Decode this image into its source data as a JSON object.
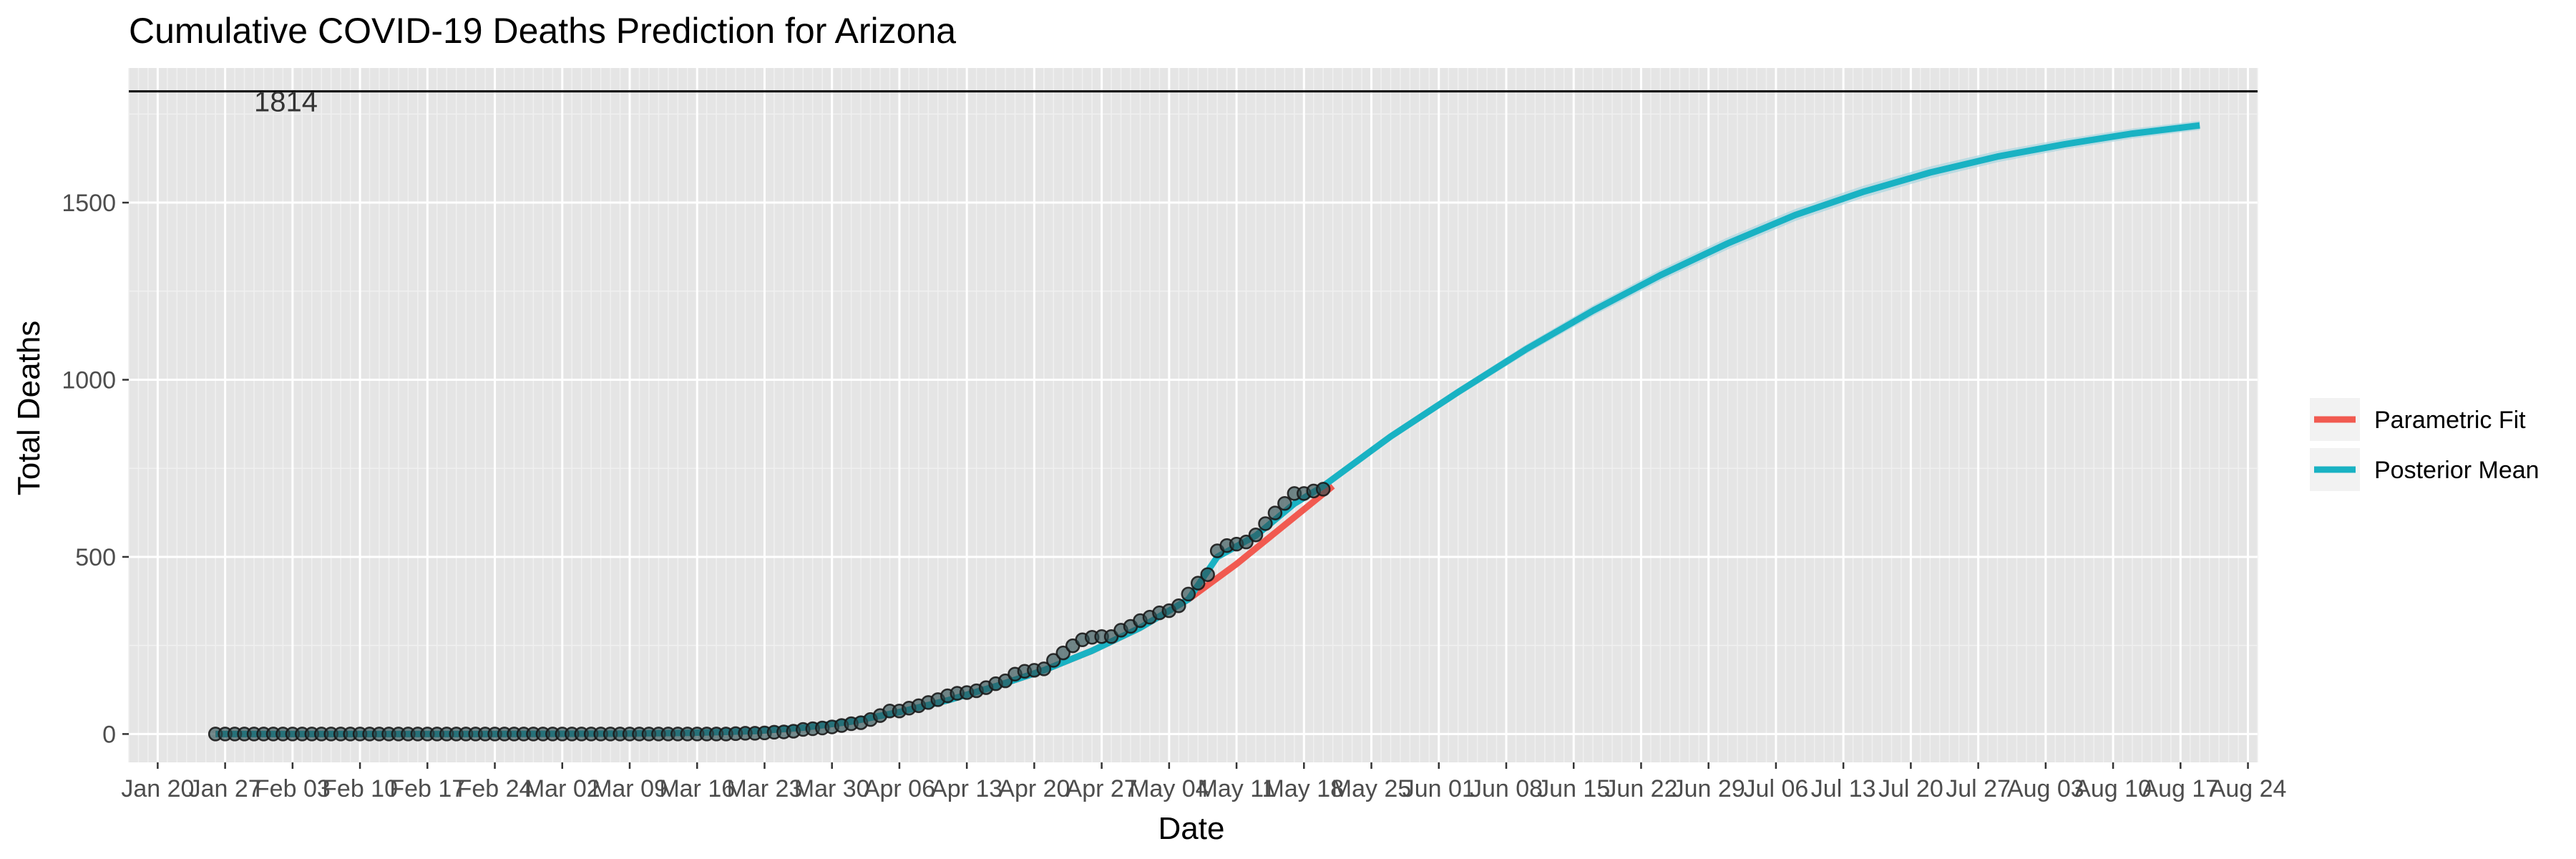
{
  "chart_data": {
    "type": "line",
    "title": "Cumulative COVID-19 Deaths Prediction for Arizona",
    "xlabel": "Date",
    "ylabel": "Total Deaths",
    "x_range": [
      "2020-01-17",
      "2020-08-25"
    ],
    "ylim": [
      -80,
      1880
    ],
    "y_ticks": [
      0,
      500,
      1000,
      1500
    ],
    "x_ticks": [
      {
        "date": "2020-01-20",
        "label": "Jan 20"
      },
      {
        "date": "2020-01-27",
        "label": "Jan 27"
      },
      {
        "date": "2020-02-03",
        "label": "Feb 03"
      },
      {
        "date": "2020-02-10",
        "label": "Feb 10"
      },
      {
        "date": "2020-02-17",
        "label": "Feb 17"
      },
      {
        "date": "2020-02-24",
        "label": "Feb 24"
      },
      {
        "date": "2020-03-02",
        "label": "Mar 02"
      },
      {
        "date": "2020-03-09",
        "label": "Mar 09"
      },
      {
        "date": "2020-03-16",
        "label": "Mar 16"
      },
      {
        "date": "2020-03-23",
        "label": "Mar 23"
      },
      {
        "date": "2020-03-30",
        "label": "Mar 30"
      },
      {
        "date": "2020-04-06",
        "label": "Apr 06"
      },
      {
        "date": "2020-04-13",
        "label": "Apr 13"
      },
      {
        "date": "2020-04-20",
        "label": "Apr 20"
      },
      {
        "date": "2020-04-27",
        "label": "Apr 27"
      },
      {
        "date": "2020-05-04",
        "label": "May 04"
      },
      {
        "date": "2020-05-11",
        "label": "May 11"
      },
      {
        "date": "2020-05-18",
        "label": "May 18"
      },
      {
        "date": "2020-05-25",
        "label": "May 25"
      },
      {
        "date": "2020-06-01",
        "label": "Jun 01"
      },
      {
        "date": "2020-06-08",
        "label": "Jun 08"
      },
      {
        "date": "2020-06-15",
        "label": "Jun 15"
      },
      {
        "date": "2020-06-22",
        "label": "Jun 22"
      },
      {
        "date": "2020-06-29",
        "label": "Jun 29"
      },
      {
        "date": "2020-07-06",
        "label": "Jul 06"
      },
      {
        "date": "2020-07-13",
        "label": "Jul 13"
      },
      {
        "date": "2020-07-20",
        "label": "Jul 20"
      },
      {
        "date": "2020-07-27",
        "label": "Jul 27"
      },
      {
        "date": "2020-08-03",
        "label": "Aug 03"
      },
      {
        "date": "2020-08-10",
        "label": "Aug 10"
      },
      {
        "date": "2020-08-17",
        "label": "Aug 17"
      },
      {
        "date": "2020-08-24",
        "label": "Aug 24"
      }
    ],
    "reference_line": {
      "value": 1814,
      "label": "1814",
      "color": "#000000"
    },
    "legend_position": "right",
    "grid": true,
    "panel_background": "#e5e5e5",
    "series": [
      {
        "name": "Parametric Fit",
        "color": "#f15a50",
        "points": [
          [
            "2020-01-26",
            0
          ],
          [
            "2020-02-09",
            0
          ],
          [
            "2020-02-23",
            0
          ],
          [
            "2020-03-08",
            1
          ],
          [
            "2020-03-15",
            3
          ],
          [
            "2020-03-22",
            8
          ],
          [
            "2020-03-27",
            18
          ],
          [
            "2020-04-01",
            35
          ],
          [
            "2020-04-06",
            62
          ],
          [
            "2020-04-11",
            95
          ],
          [
            "2020-04-16",
            135
          ],
          [
            "2020-04-21",
            180
          ],
          [
            "2020-04-26",
            235
          ],
          [
            "2020-05-01",
            300
          ],
          [
            "2020-05-06",
            380
          ],
          [
            "2020-05-11",
            480
          ],
          [
            "2020-05-16",
            590
          ],
          [
            "2020-05-21",
            700
          ]
        ]
      },
      {
        "name": "Posterior Mean",
        "color": "#19b2c3",
        "band_color": "#a8d6e0",
        "points": [
          [
            "2020-01-26",
            0
          ],
          [
            "2020-02-09",
            0
          ],
          [
            "2020-02-23",
            0
          ],
          [
            "2020-03-08",
            1
          ],
          [
            "2020-03-15",
            3
          ],
          [
            "2020-03-22",
            8
          ],
          [
            "2020-03-27",
            18
          ],
          [
            "2020-04-01",
            35
          ],
          [
            "2020-04-06",
            62
          ],
          [
            "2020-04-11",
            95
          ],
          [
            "2020-04-16",
            135
          ],
          [
            "2020-04-21",
            180
          ],
          [
            "2020-04-26",
            235
          ],
          [
            "2020-05-01",
            300
          ],
          [
            "2020-05-06",
            380
          ],
          [
            "2020-05-09",
            500
          ],
          [
            "2020-05-13",
            560
          ],
          [
            "2020-05-17",
            650
          ],
          [
            "2020-05-20",
            700
          ],
          [
            "2020-05-27",
            840
          ],
          [
            "2020-06-03",
            965
          ],
          [
            "2020-06-10",
            1085
          ],
          [
            "2020-06-17",
            1195
          ],
          [
            "2020-06-24",
            1295
          ],
          [
            "2020-07-01",
            1385
          ],
          [
            "2020-07-08",
            1465
          ],
          [
            "2020-07-15",
            1530
          ],
          [
            "2020-07-22",
            1585
          ],
          [
            "2020-07-29",
            1630
          ],
          [
            "2020-08-05",
            1665
          ],
          [
            "2020-08-12",
            1695
          ],
          [
            "2020-08-19",
            1718
          ]
        ],
        "band_halfwidth": [
          0,
          0,
          0,
          0,
          0,
          0,
          0,
          0,
          0,
          0,
          0,
          0,
          0,
          0,
          0,
          0,
          0,
          0,
          3,
          8,
          11,
          13,
          15,
          16,
          17,
          17,
          17,
          17,
          16,
          15,
          14,
          13
        ]
      }
    ],
    "observed": {
      "color": "#2e4f52",
      "points": [
        [
          "2020-01-26",
          0
        ],
        [
          "2020-01-27",
          0
        ],
        [
          "2020-01-28",
          0
        ],
        [
          "2020-01-29",
          0
        ],
        [
          "2020-01-30",
          0
        ],
        [
          "2020-01-31",
          0
        ],
        [
          "2020-02-01",
          0
        ],
        [
          "2020-02-02",
          0
        ],
        [
          "2020-02-03",
          0
        ],
        [
          "2020-02-04",
          0
        ],
        [
          "2020-02-05",
          0
        ],
        [
          "2020-02-06",
          0
        ],
        [
          "2020-02-07",
          0
        ],
        [
          "2020-02-08",
          0
        ],
        [
          "2020-02-09",
          0
        ],
        [
          "2020-02-10",
          0
        ],
        [
          "2020-02-11",
          0
        ],
        [
          "2020-02-12",
          0
        ],
        [
          "2020-02-13",
          0
        ],
        [
          "2020-02-14",
          0
        ],
        [
          "2020-02-15",
          0
        ],
        [
          "2020-02-16",
          0
        ],
        [
          "2020-02-17",
          0
        ],
        [
          "2020-02-18",
          0
        ],
        [
          "2020-02-19",
          0
        ],
        [
          "2020-02-20",
          0
        ],
        [
          "2020-02-21",
          0
        ],
        [
          "2020-02-22",
          0
        ],
        [
          "2020-02-23",
          0
        ],
        [
          "2020-02-24",
          0
        ],
        [
          "2020-02-25",
          0
        ],
        [
          "2020-02-26",
          0
        ],
        [
          "2020-02-27",
          0
        ],
        [
          "2020-02-28",
          0
        ],
        [
          "2020-02-29",
          0
        ],
        [
          "2020-03-01",
          0
        ],
        [
          "2020-03-02",
          0
        ],
        [
          "2020-03-03",
          0
        ],
        [
          "2020-03-04",
          0
        ],
        [
          "2020-03-05",
          0
        ],
        [
          "2020-03-06",
          0
        ],
        [
          "2020-03-07",
          0
        ],
        [
          "2020-03-08",
          0
        ],
        [
          "2020-03-09",
          0
        ],
        [
          "2020-03-10",
          0
        ],
        [
          "2020-03-11",
          0
        ],
        [
          "2020-03-12",
          0
        ],
        [
          "2020-03-13",
          0
        ],
        [
          "2020-03-14",
          0
        ],
        [
          "2020-03-15",
          0
        ],
        [
          "2020-03-16",
          0
        ],
        [
          "2020-03-17",
          0
        ],
        [
          "2020-03-18",
          0
        ],
        [
          "2020-03-19",
          0
        ],
        [
          "2020-03-20",
          1
        ],
        [
          "2020-03-21",
          2
        ],
        [
          "2020-03-22",
          2
        ],
        [
          "2020-03-23",
          3
        ],
        [
          "2020-03-24",
          5
        ],
        [
          "2020-03-25",
          6
        ],
        [
          "2020-03-26",
          8
        ],
        [
          "2020-03-27",
          13
        ],
        [
          "2020-03-28",
          15
        ],
        [
          "2020-03-29",
          17
        ],
        [
          "2020-03-30",
          20
        ],
        [
          "2020-03-31",
          24
        ],
        [
          "2020-04-01",
          29
        ],
        [
          "2020-04-02",
          32
        ],
        [
          "2020-04-03",
          41
        ],
        [
          "2020-04-04",
          52
        ],
        [
          "2020-04-05",
          65
        ],
        [
          "2020-04-06",
          65
        ],
        [
          "2020-04-07",
          73
        ],
        [
          "2020-04-08",
          80
        ],
        [
          "2020-04-09",
          89
        ],
        [
          "2020-04-10",
          97
        ],
        [
          "2020-04-11",
          108
        ],
        [
          "2020-04-12",
          115
        ],
        [
          "2020-04-13",
          117
        ],
        [
          "2020-04-14",
          122
        ],
        [
          "2020-04-15",
          131
        ],
        [
          "2020-04-16",
          142
        ],
        [
          "2020-04-17",
          150
        ],
        [
          "2020-04-18",
          169
        ],
        [
          "2020-04-19",
          177
        ],
        [
          "2020-04-20",
          180
        ],
        [
          "2020-04-21",
          184
        ],
        [
          "2020-04-22",
          208
        ],
        [
          "2020-04-23",
          229
        ],
        [
          "2020-04-24",
          249
        ],
        [
          "2020-04-25",
          266
        ],
        [
          "2020-04-26",
          273
        ],
        [
          "2020-04-27",
          275
        ],
        [
          "2020-04-28",
          275
        ],
        [
          "2020-04-29",
          293
        ],
        [
          "2020-04-30",
          304
        ],
        [
          "2020-05-01",
          320
        ],
        [
          "2020-05-02",
          330
        ],
        [
          "2020-05-03",
          342
        ],
        [
          "2020-05-04",
          348
        ],
        [
          "2020-05-05",
          362
        ],
        [
          "2020-05-06",
          395
        ],
        [
          "2020-05-07",
          426
        ],
        [
          "2020-05-08",
          450
        ],
        [
          "2020-05-09",
          517
        ],
        [
          "2020-05-10",
          532
        ],
        [
          "2020-05-11",
          536
        ],
        [
          "2020-05-12",
          542
        ],
        [
          "2020-05-13",
          562
        ],
        [
          "2020-05-14",
          594
        ],
        [
          "2020-05-15",
          624
        ],
        [
          "2020-05-16",
          651
        ],
        [
          "2020-05-17",
          679
        ],
        [
          "2020-05-18",
          679
        ],
        [
          "2020-05-19",
          686
        ],
        [
          "2020-05-20",
          691
        ]
      ]
    }
  }
}
